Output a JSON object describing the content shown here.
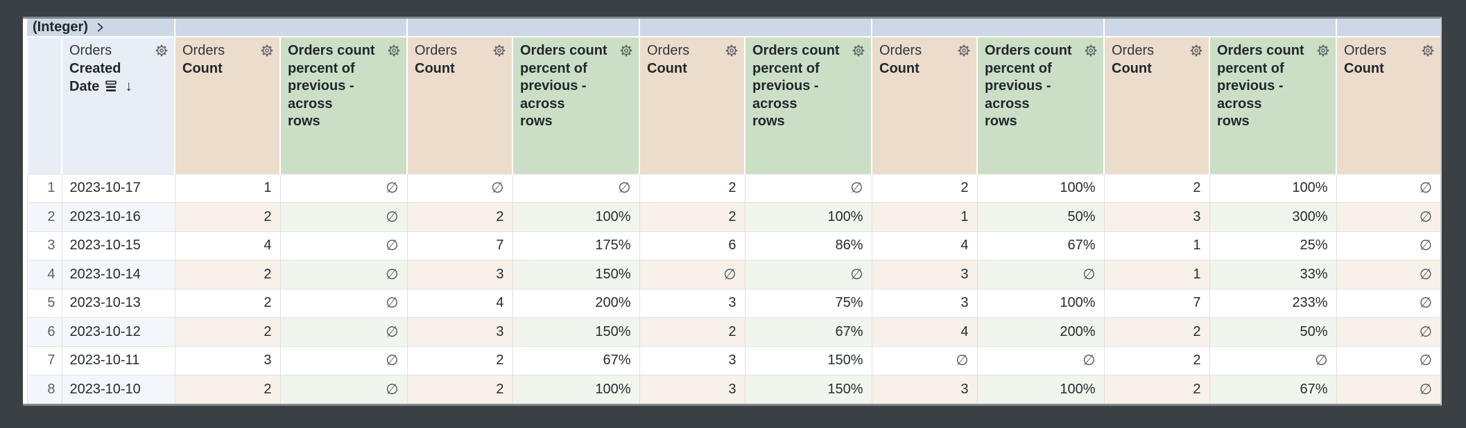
{
  "pivot": {
    "label": "(Integer)",
    "chevron_icon": "chevron-right-icon"
  },
  "headers": {
    "row_number": "",
    "dimension": {
      "lines": [
        "Orders",
        "Created",
        "Date"
      ],
      "sort_stack_icon": "sort-stack-icon",
      "sort_arrow": "↓",
      "gear_icon": "gear-icon"
    },
    "count": {
      "lines": [
        "Orders",
        "Count"
      ],
      "gear_icon": "gear-icon"
    },
    "percent": {
      "lines": [
        "Orders count",
        "percent of",
        "previous -",
        "across",
        "rows"
      ],
      "gear_icon": "gear-icon"
    }
  },
  "column_types": [
    "count",
    "pct",
    "count",
    "pct",
    "count",
    "pct",
    "count",
    "pct",
    "count",
    "pct",
    "count"
  ],
  "rows": [
    {
      "n": "1",
      "date": "2023-10-17",
      "values": [
        "1",
        "∅",
        "∅",
        "∅",
        "2",
        "∅",
        "2",
        "100%",
        "2",
        "100%",
        "∅"
      ]
    },
    {
      "n": "2",
      "date": "2023-10-16",
      "values": [
        "2",
        "∅",
        "2",
        "100%",
        "2",
        "100%",
        "1",
        "50%",
        "3",
        "300%",
        "∅"
      ]
    },
    {
      "n": "3",
      "date": "2023-10-15",
      "values": [
        "4",
        "∅",
        "7",
        "175%",
        "6",
        "86%",
        "4",
        "67%",
        "1",
        "25%",
        "∅"
      ]
    },
    {
      "n": "4",
      "date": "2023-10-14",
      "values": [
        "2",
        "∅",
        "3",
        "150%",
        "∅",
        "∅",
        "3",
        "∅",
        "1",
        "33%",
        "∅"
      ]
    },
    {
      "n": "5",
      "date": "2023-10-13",
      "values": [
        "2",
        "∅",
        "4",
        "200%",
        "3",
        "75%",
        "3",
        "100%",
        "7",
        "233%",
        "∅"
      ]
    },
    {
      "n": "6",
      "date": "2023-10-12",
      "values": [
        "2",
        "∅",
        "3",
        "150%",
        "2",
        "67%",
        "4",
        "200%",
        "2",
        "50%",
        "∅"
      ]
    },
    {
      "n": "7",
      "date": "2023-10-11",
      "values": [
        "3",
        "∅",
        "2",
        "67%",
        "3",
        "150%",
        "∅",
        "∅",
        "2",
        "∅",
        "∅"
      ]
    },
    {
      "n": "8",
      "date": "2023-10-10",
      "values": [
        "2",
        "∅",
        "2",
        "100%",
        "3",
        "150%",
        "3",
        "100%",
        "2",
        "67%",
        "∅"
      ]
    }
  ],
  "null_symbol": "∅",
  "colors": {
    "frame_bg": "#3b4044",
    "pivot_header_bg": "#ccd8e6",
    "dimension_header_bg": "#e9eef6",
    "count_header_bg": "#ecdccc",
    "percent_header_bg": "#cbdfc6",
    "row_tint_dimension": "#f3f6fa",
    "row_tint_count": "#f7f1ea",
    "row_tint_percent": "#f0f6ee",
    "gridline": "#e2e0dd",
    "text": "#262c31",
    "muted_text": "#5b6167"
  }
}
